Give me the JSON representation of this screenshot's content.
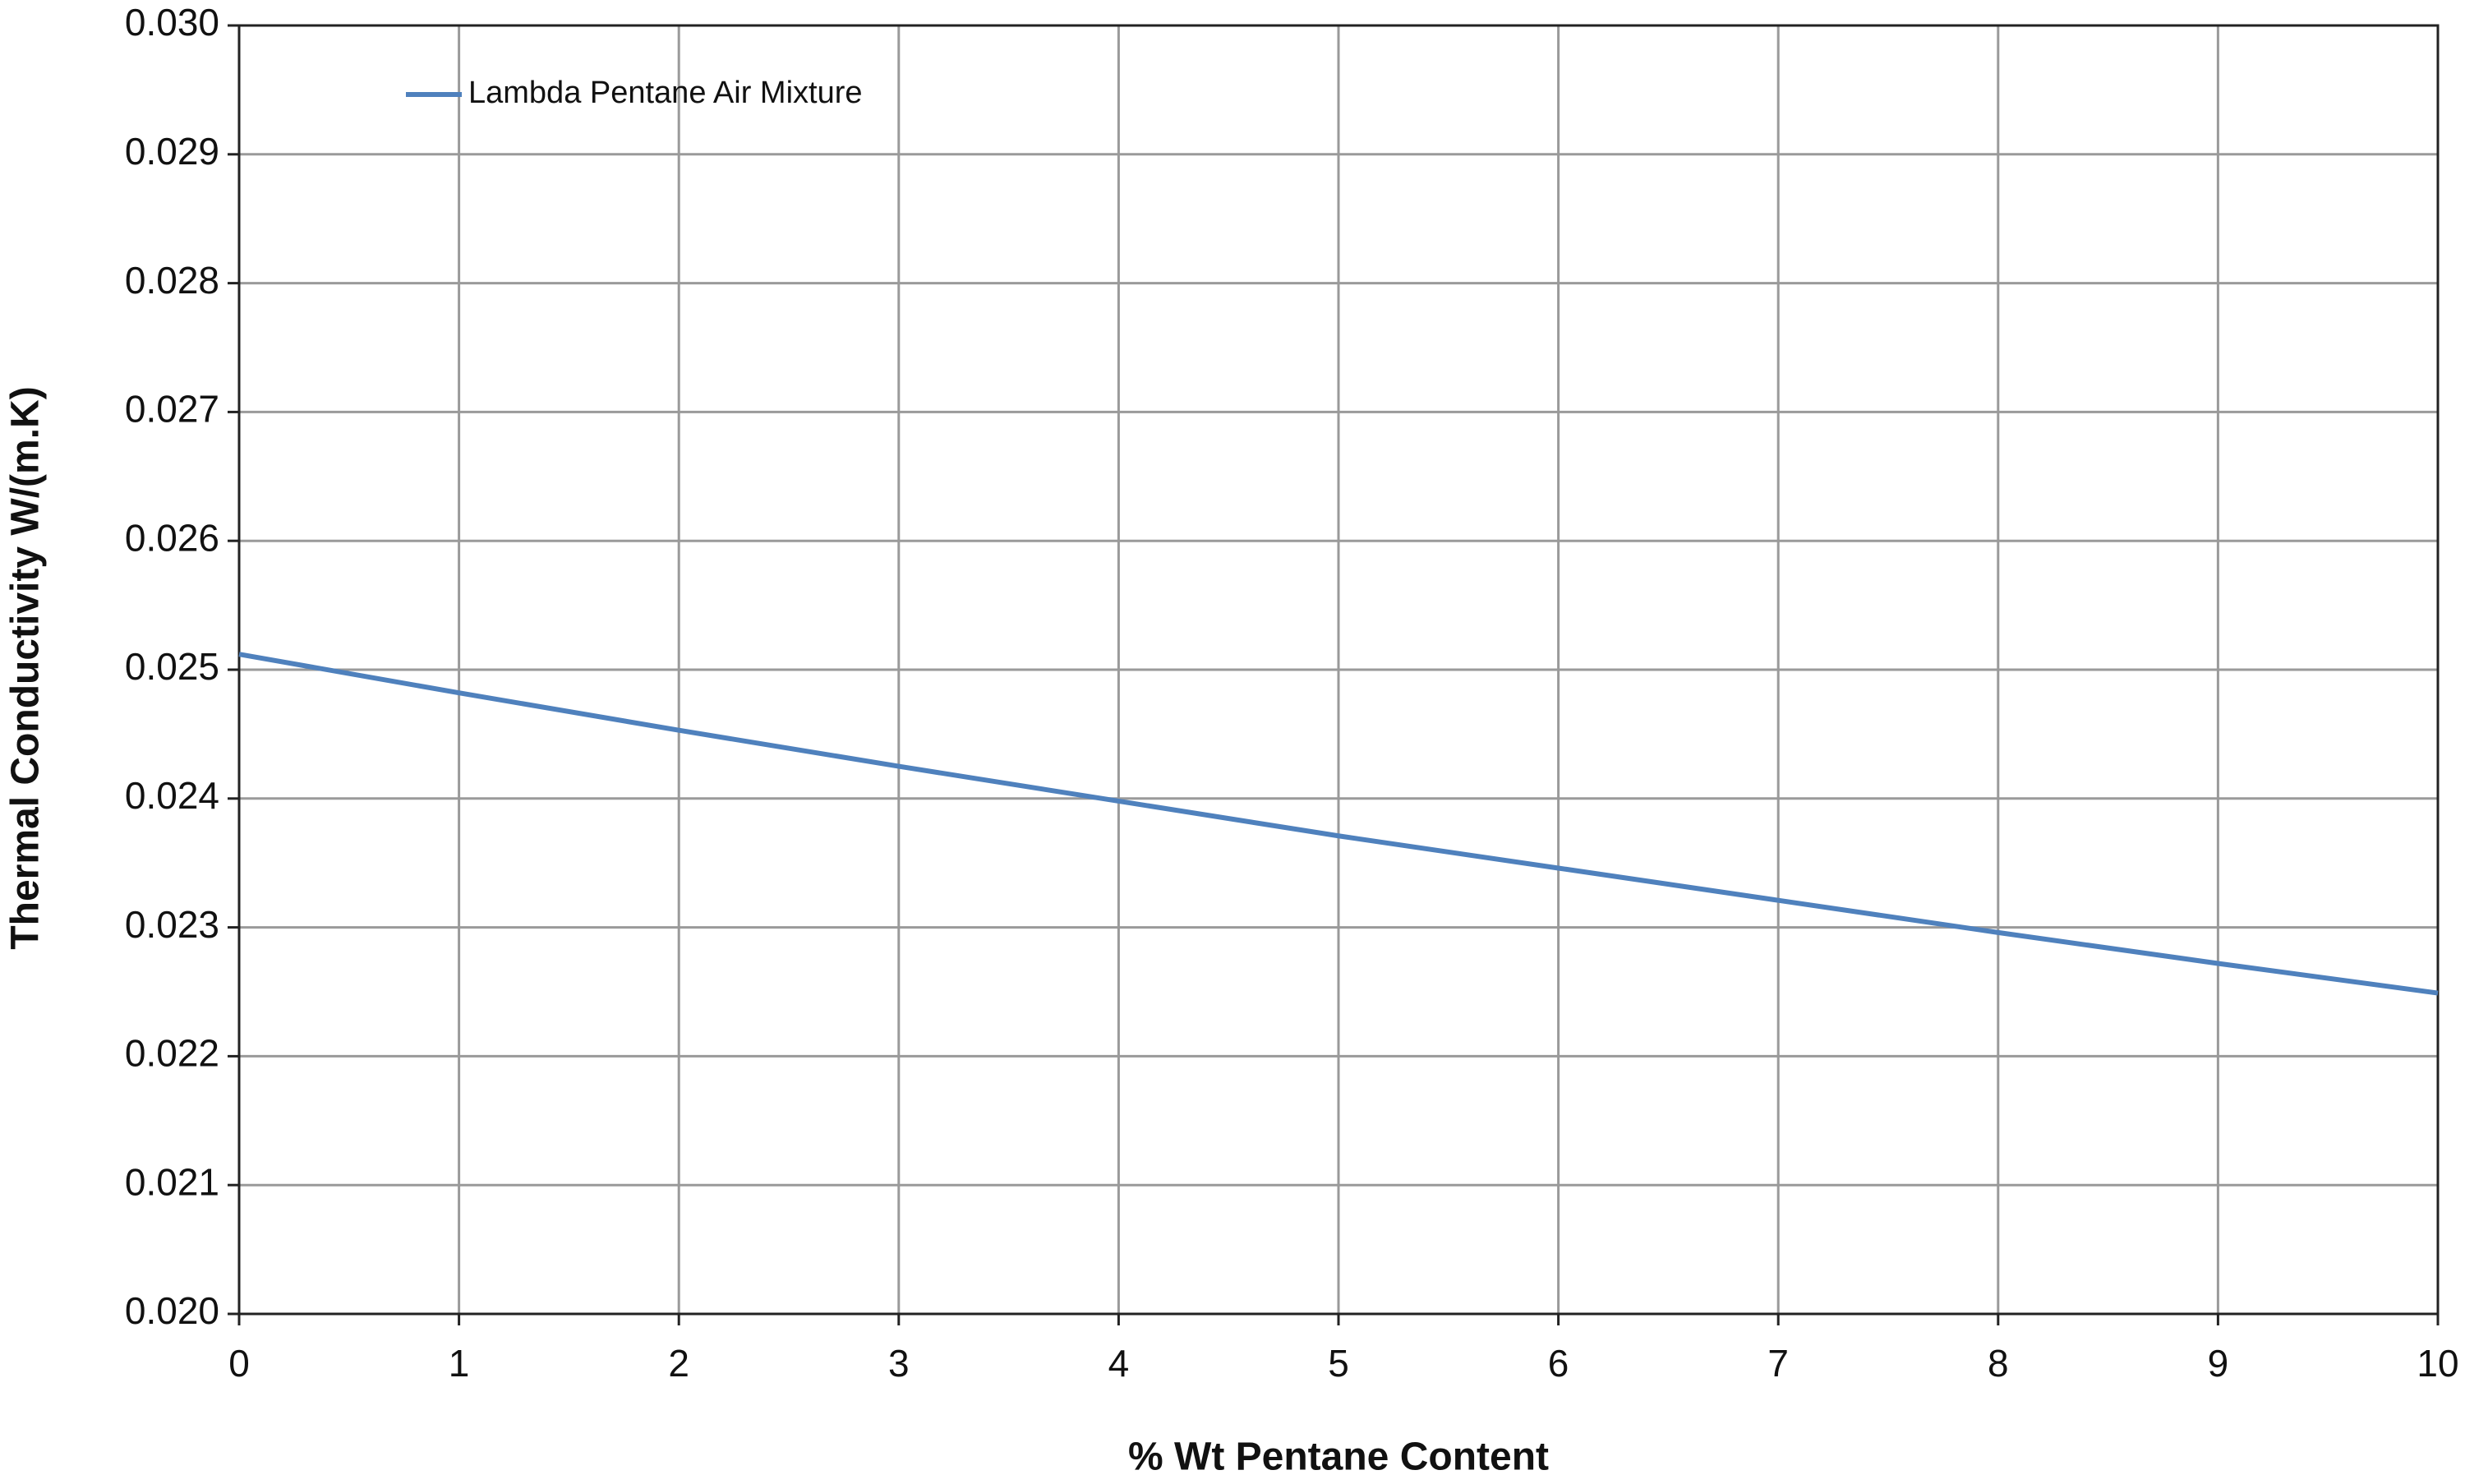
{
  "chart_data": {
    "type": "line",
    "x_label": "% Wt Pentane Content",
    "y_label": "Thermal Conductivity W/(m.K)",
    "x": [
      0,
      1,
      2,
      3,
      4,
      5,
      6,
      7,
      8,
      9,
      10
    ],
    "series": [
      {
        "name": "Lambda Pentane Air Mixture",
        "color": "#4f81bd",
        "values": [
          0.02512,
          0.02482,
          0.02453,
          0.02425,
          0.02398,
          0.02371,
          0.02346,
          0.02321,
          0.02296,
          0.02272,
          0.02249
        ]
      }
    ],
    "xlim": [
      0,
      10
    ],
    "xticks": [
      0,
      1,
      2,
      3,
      4,
      5,
      6,
      7,
      8,
      9,
      10
    ],
    "ylim": [
      0.02,
      0.03
    ],
    "yticks": [
      {
        "value": 0.02,
        "label": "0.020"
      },
      0.021,
      0.022,
      0.023,
      0.024,
      0.025,
      0.026,
      0.027,
      0.028,
      0.029,
      {
        "value": 0.03,
        "label": "0.030"
      }
    ],
    "grid": true,
    "legend": "upper left"
  }
}
